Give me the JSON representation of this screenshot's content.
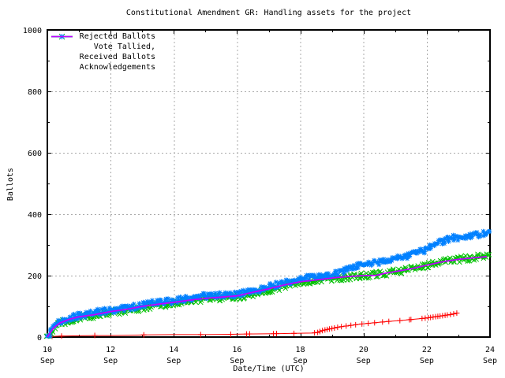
{
  "chart": {
    "title": "Constitutional Amendment GR: Handling assets for the project",
    "xlabel": "Date/Time (UTC)",
    "ylabel": "Ballots"
  },
  "chart_data": {
    "type": "line",
    "title": "Constitutional Amendment GR: Handling assets for the project",
    "xlabel": "Date/Time (UTC)",
    "ylabel": "Ballots",
    "x_unit": "day of September (UTC)",
    "xlim": [
      10,
      24
    ],
    "ylim": [
      0,
      1000
    ],
    "x_ticks": [
      {
        "x": 10,
        "top": "10",
        "bottom": "Sep"
      },
      {
        "x": 12,
        "top": "12",
        "bottom": "Sep"
      },
      {
        "x": 14,
        "top": "14",
        "bottom": "Sep"
      },
      {
        "x": 16,
        "top": "16",
        "bottom": "Sep"
      },
      {
        "x": 18,
        "top": "18",
        "bottom": "Sep"
      },
      {
        "x": 20,
        "top": "20",
        "bottom": "Sep"
      },
      {
        "x": 22,
        "top": "22",
        "bottom": "Sep"
      },
      {
        "x": 24,
        "top": "24",
        "bottom": "Sep"
      }
    ],
    "x_minor_ticks": [
      11,
      13,
      15,
      17,
      19,
      21,
      23
    ],
    "y_ticks": [
      {
        "y": 0,
        "label": "0"
      },
      {
        "y": 200,
        "label": "200"
      },
      {
        "y": 400,
        "label": "400"
      },
      {
        "y": 600,
        "label": "600"
      },
      {
        "y": 800,
        "label": "800"
      },
      {
        "y": 1000,
        "label": "1000"
      }
    ],
    "y_minor_ticks": [
      100,
      300,
      500,
      700,
      900
    ],
    "grid": {
      "show": true,
      "style": "dashed",
      "color": "#a8a8a8",
      "at_major_ticks": true
    },
    "legend_position": "top-left-inside",
    "series": [
      {
        "name": "Rejected Ballots",
        "color": "#ff0000",
        "marker": "plus",
        "band": false,
        "points": [
          [
            10.0,
            0
          ],
          [
            10.1,
            2
          ],
          [
            10.4,
            3
          ],
          [
            11.0,
            4
          ],
          [
            11.5,
            5
          ],
          [
            12.0,
            5
          ],
          [
            12.6,
            6
          ],
          [
            13.1,
            7
          ],
          [
            14.0,
            8
          ],
          [
            15.0,
            8
          ],
          [
            15.8,
            9
          ],
          [
            16.3,
            10
          ],
          [
            17.2,
            11
          ],
          [
            17.8,
            12
          ],
          [
            18.4,
            13
          ],
          [
            18.55,
            15
          ],
          [
            18.7,
            21
          ],
          [
            18.9,
            26
          ],
          [
            19.1,
            30
          ],
          [
            19.3,
            34
          ],
          [
            19.6,
            38
          ],
          [
            19.9,
            42
          ],
          [
            20.2,
            45
          ],
          [
            20.5,
            48
          ],
          [
            20.8,
            51
          ],
          [
            21.2,
            54
          ],
          [
            21.5,
            57
          ],
          [
            21.8,
            60
          ],
          [
            22.0,
            62
          ],
          [
            22.2,
            65
          ],
          [
            22.4,
            68
          ],
          [
            22.6,
            71
          ],
          [
            22.8,
            74
          ],
          [
            22.95,
            78
          ]
        ],
        "marker_days": [
          10.15,
          10.45,
          11.5,
          13.05,
          14.85,
          15.8,
          16.3,
          16.4,
          17.15,
          17.25,
          17.8,
          18.45,
          18.55,
          18.62,
          18.7,
          18.78,
          18.85,
          18.92,
          19.0,
          19.08,
          19.18,
          19.3,
          19.45,
          19.6,
          19.75,
          19.95,
          20.15,
          20.35,
          20.6,
          20.8,
          21.15,
          21.45,
          21.5,
          21.85,
          21.95,
          22.05,
          22.12,
          22.2,
          22.28,
          22.35,
          22.42,
          22.5,
          22.58,
          22.65,
          22.75,
          22.85,
          22.95
        ]
      },
      {
        "name": "Vote Tallied,",
        "color": "#00c000",
        "marker": "cross",
        "band": true,
        "points": [
          [
            10.0,
            0
          ],
          [
            10.05,
            5
          ],
          [
            10.1,
            13
          ],
          [
            10.15,
            22
          ],
          [
            10.25,
            33
          ],
          [
            10.4,
            43
          ],
          [
            10.6,
            52
          ],
          [
            10.8,
            58
          ],
          [
            11.0,
            62
          ],
          [
            11.3,
            68
          ],
          [
            11.6,
            73
          ],
          [
            12.0,
            79
          ],
          [
            12.4,
            85
          ],
          [
            12.8,
            91
          ],
          [
            13.1,
            97
          ],
          [
            13.4,
            103
          ],
          [
            13.7,
            106
          ],
          [
            14.0,
            109
          ],
          [
            14.3,
            114
          ],
          [
            14.6,
            119
          ],
          [
            14.9,
            123
          ],
          [
            15.2,
            125
          ],
          [
            15.6,
            128
          ],
          [
            16.0,
            131
          ],
          [
            16.3,
            136
          ],
          [
            16.6,
            143
          ],
          [
            17.0,
            153
          ],
          [
            17.3,
            161
          ],
          [
            17.6,
            169
          ],
          [
            18.0,
            177
          ],
          [
            18.3,
            181
          ],
          [
            18.6,
            184
          ],
          [
            19.0,
            189
          ],
          [
            19.3,
            193
          ],
          [
            19.6,
            196
          ],
          [
            20.0,
            199
          ],
          [
            20.3,
            202
          ],
          [
            20.6,
            206
          ],
          [
            21.0,
            212
          ],
          [
            21.3,
            218
          ],
          [
            21.6,
            225
          ],
          [
            21.9,
            232
          ],
          [
            22.2,
            238
          ],
          [
            22.5,
            244
          ],
          [
            22.8,
            250
          ],
          [
            23.1,
            254
          ],
          [
            23.4,
            258
          ],
          [
            23.7,
            262
          ],
          [
            24.0,
            268
          ]
        ]
      },
      {
        "name": "Received Ballots",
        "color": "#0080ff",
        "marker": "star",
        "band": true,
        "points": [
          [
            10.0,
            0
          ],
          [
            10.05,
            8
          ],
          [
            10.1,
            18
          ],
          [
            10.15,
            28
          ],
          [
            10.25,
            40
          ],
          [
            10.4,
            50
          ],
          [
            10.6,
            59
          ],
          [
            10.8,
            64
          ],
          [
            11.0,
            69
          ],
          [
            11.3,
            75
          ],
          [
            11.6,
            81
          ],
          [
            12.0,
            87
          ],
          [
            12.4,
            93
          ],
          [
            12.8,
            99
          ],
          [
            13.1,
            106
          ],
          [
            13.4,
            112
          ],
          [
            13.7,
            115
          ],
          [
            14.0,
            118
          ],
          [
            14.3,
            123
          ],
          [
            14.6,
            128
          ],
          [
            14.9,
            132
          ],
          [
            15.2,
            134
          ],
          [
            15.6,
            137
          ],
          [
            16.0,
            140
          ],
          [
            16.3,
            145
          ],
          [
            16.6,
            152
          ],
          [
            17.0,
            163
          ],
          [
            17.3,
            171
          ],
          [
            17.6,
            180
          ],
          [
            18.0,
            189
          ],
          [
            18.3,
            193
          ],
          [
            18.6,
            197
          ],
          [
            19.0,
            203
          ],
          [
            19.2,
            208
          ],
          [
            19.4,
            216
          ],
          [
            19.6,
            224
          ],
          [
            19.8,
            231
          ],
          [
            20.0,
            237
          ],
          [
            20.3,
            241
          ],
          [
            20.6,
            245
          ],
          [
            21.0,
            253
          ],
          [
            21.3,
            262
          ],
          [
            21.6,
            272
          ],
          [
            21.9,
            282
          ],
          [
            22.1,
            292
          ],
          [
            22.3,
            303
          ],
          [
            22.5,
            313
          ],
          [
            22.7,
            320
          ],
          [
            22.9,
            324
          ],
          [
            23.1,
            326
          ],
          [
            23.3,
            328
          ],
          [
            23.6,
            334
          ],
          [
            24.0,
            345
          ]
        ]
      },
      {
        "name": "Acknowledgements",
        "color": "#c000ff",
        "marker": "none",
        "band": false,
        "points": [
          [
            10.0,
            0
          ],
          [
            10.1,
            16
          ],
          [
            10.2,
            30
          ],
          [
            10.4,
            46
          ],
          [
            10.7,
            58
          ],
          [
            11.0,
            66
          ],
          [
            11.5,
            73
          ],
          [
            12.0,
            83
          ],
          [
            12.5,
            90
          ],
          [
            13.0,
            100
          ],
          [
            13.5,
            107
          ],
          [
            14.0,
            113
          ],
          [
            14.5,
            120
          ],
          [
            15.0,
            126
          ],
          [
            15.5,
            130
          ],
          [
            16.0,
            134
          ],
          [
            16.5,
            146
          ],
          [
            17.0,
            157
          ],
          [
            17.5,
            170
          ],
          [
            18.0,
            180
          ],
          [
            18.5,
            186
          ],
          [
            19.0,
            192
          ],
          [
            19.5,
            197
          ],
          [
            20.0,
            200
          ],
          [
            20.4,
            201
          ],
          [
            20.7,
            208
          ],
          [
            21.0,
            213
          ],
          [
            21.5,
            222
          ],
          [
            22.0,
            234
          ],
          [
            22.5,
            245
          ],
          [
            23.0,
            253
          ],
          [
            23.5,
            258
          ],
          [
            23.9,
            262
          ]
        ]
      }
    ]
  }
}
